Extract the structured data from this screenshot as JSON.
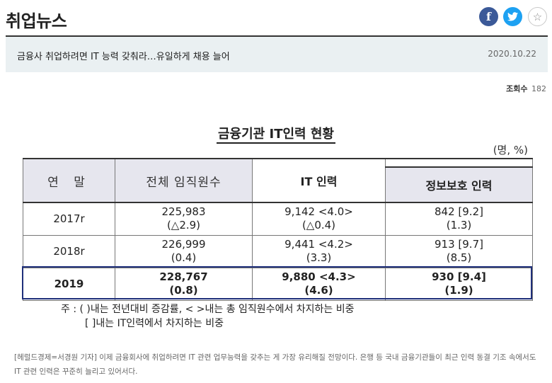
{
  "site": {
    "section_title": "취업뉴스",
    "social": {
      "facebook_glyph": "f",
      "twitter_icon": "twitter-bird-icon",
      "bookmark_glyph": "☆"
    }
  },
  "article": {
    "headline": "금융사 취업하려면 IT 능력 갖춰라…유일하게 채용 늘어",
    "date": "2020.10.22",
    "views_label": "조회수",
    "views_count": "182",
    "body": "[헤럴드경제=서경원 기자] 이제 금융회사에 취업하려면 IT 관련 업무능력을 갖추는 게 가장 유리해질 전망이다. 은행 등 국내 금융기관들이 최근 인력 동결 기조 속에서도 IT 관련 인력은 꾸준히 늘리고 있어서다."
  },
  "figure": {
    "title": "금융기관 IT인력 현황",
    "unit": "(명, %)",
    "headers": {
      "year": "연 말",
      "total": "전체 임직원수",
      "it": "IT 인력",
      "security": "정보보호 인력"
    },
    "rows": [
      {
        "year": "2017r",
        "total": "225,983",
        "total_change": "(△2.9)",
        "it": "9,142  <4.0>",
        "it_change": "(△0.4)",
        "sec": "842  [9.2]",
        "sec_change": "(1.3)"
      },
      {
        "year": "2018r",
        "total": "226,999",
        "total_change": "(0.4)",
        "it": "9,441  <4.2>",
        "it_change": "(3.3)",
        "sec": "913  [9.7]",
        "sec_change": "(8.5)"
      },
      {
        "year": "2019",
        "total": "228,767",
        "total_change": "(0.8)",
        "it": "9,880  <4.3>",
        "it_change": "(4.6)",
        "sec": "930  [9.4]",
        "sec_change": "(1.9)"
      }
    ],
    "note_line1": "주 : (  )내는 전년대비 증감률, <  >내는 총 임직원수에서 차지하는 비중",
    "note_line2": "[  ]내는 IT인력에서 차지하는 비중"
  },
  "colors": {
    "facebook": "#3b5998",
    "twitter": "#1da1f2",
    "highlight_border": "#1f2f7a",
    "header_fill": "#e6e6ee",
    "titlebar_bg": "#eaf0f2"
  }
}
